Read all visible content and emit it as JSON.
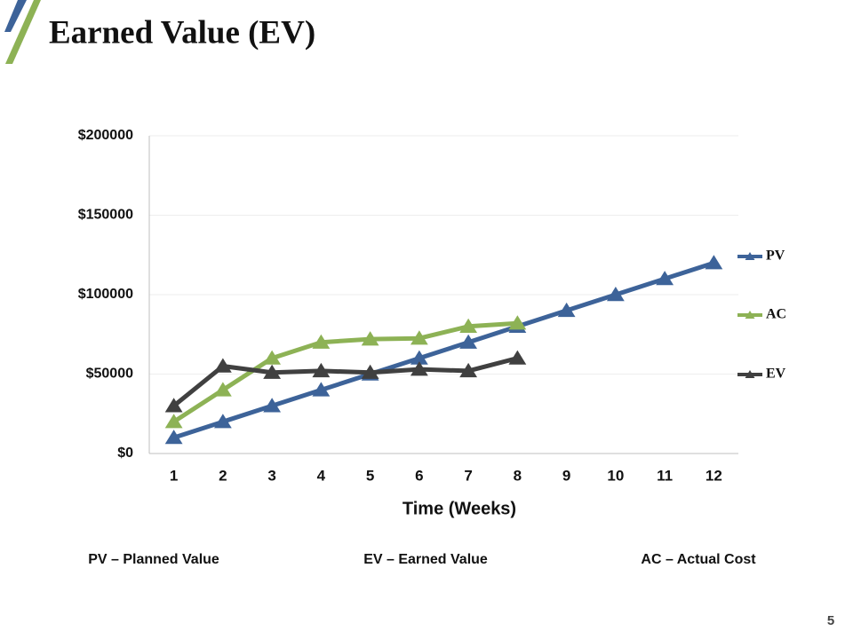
{
  "chart_data": {
    "type": "line",
    "title": "Earned Value (EV)",
    "x_label": "Time (Weeks)",
    "categories": [
      "1",
      "2",
      "3",
      "4",
      "5",
      "6",
      "7",
      "8",
      "9",
      "10",
      "11",
      "12"
    ],
    "series": [
      {
        "name": "PV",
        "color": "#3d6399",
        "values": [
          10000,
          20000,
          30000,
          40000,
          50000,
          60000,
          70000,
          80000,
          90000,
          100000,
          110000,
          120000
        ]
      },
      {
        "name": "AC",
        "color": "#8db255",
        "values": [
          20000,
          40000,
          60000,
          70000,
          72000,
          72500,
          80000,
          82000,
          null,
          null,
          null,
          null
        ]
      },
      {
        "name": "EV",
        "color": "#404040",
        "values": [
          30000,
          55000,
          51000,
          52000,
          51000,
          53000,
          52000,
          60000,
          null,
          null,
          null,
          null
        ]
      }
    ],
    "ylim": [
      0,
      200000
    ],
    "yticks": [
      {
        "value": 0,
        "label": "$0"
      },
      {
        "value": 50000,
        "label": "$50000"
      },
      {
        "value": 100000,
        "label": "$100000"
      },
      {
        "value": 150000,
        "label": "$150000"
      },
      {
        "value": 200000,
        "label": "$200000"
      }
    ],
    "grid": true,
    "legend": "right"
  },
  "footer": {
    "notes": [
      "PV – Planned Value",
      "EV – Earned Value",
      "AC – Actual Cost"
    ],
    "page_number": "5"
  }
}
